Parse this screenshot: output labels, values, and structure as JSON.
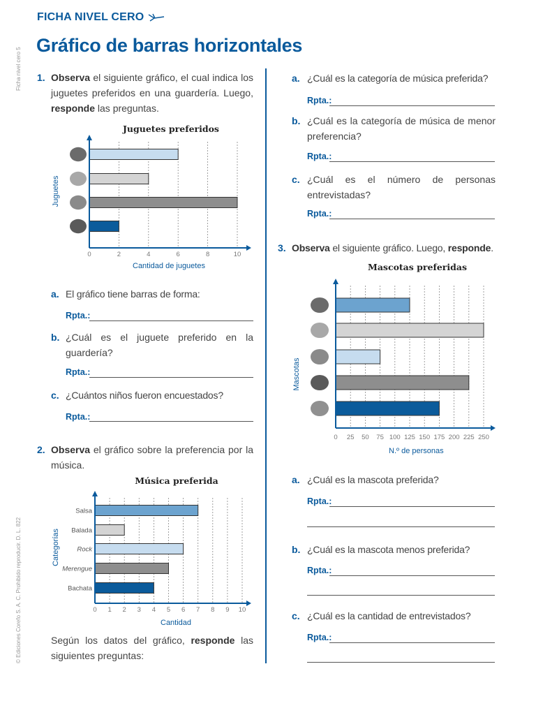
{
  "header": {
    "kicker": "FICHA NIVEL CERO",
    "kicker_icon": "dragonfly-icon",
    "title": "Gráfico de barras horizontales"
  },
  "side": {
    "top": "Ficha nivel cero 5",
    "bottom": "© Ediciones Corefo S. A. C. Prohibido reproducir. D. L. 822"
  },
  "colors": {
    "accent": "#0a5a9c",
    "bar_light_blue": "#c6dcef",
    "bar_light_gray": "#d4d4d4",
    "bar_gray": "#8e8e8e",
    "bar_dark_blue": "#0b5b9b",
    "bar_mid_blue": "#6ca3cf"
  },
  "rpta_label": "Rpta.:",
  "q1": {
    "num": "1.",
    "bold1": "Observa",
    "text1": " el siguiente gráfico, el cual indica los juguetes preferidos en una guardería. Luego, ",
    "bold2": "responde",
    "text2": " las preguntas.",
    "items": [
      {
        "letter": "a.",
        "text": "El gráfico tiene barras de forma:"
      },
      {
        "letter": "b.",
        "text": "¿Cuál es el juguete preferido en la guardería?"
      },
      {
        "letter": "c.",
        "text": "¿Cuántos niños fueron encuestados?"
      }
    ]
  },
  "q2": {
    "num": "2.",
    "bold1": "Observa",
    "text1": " el gráfico sobre la preferencia por la música.",
    "followup_text": "Según los datos del gráfico, ",
    "followup_bold": "responde",
    "followup_text2": " las siguientes preguntas:",
    "items": [
      {
        "letter": "a.",
        "text": "¿Cuál es la categoría de música preferida?"
      },
      {
        "letter": "b.",
        "text": "¿Cuál es la categoría de música de menor preferencia?"
      },
      {
        "letter": "c.",
        "text": "¿Cuál es el número de personas entrevistadas?"
      }
    ]
  },
  "q3": {
    "num": "3.",
    "bold1": "Observa",
    "text1": " el siguiente gráfico. Luego, ",
    "bold2": "responde",
    "text2": ".",
    "items": [
      {
        "letter": "a.",
        "text": "¿Cuál es la mascota preferida?"
      },
      {
        "letter": "b.",
        "text": "¿Cuál es la mascota menos preferida?"
      },
      {
        "letter": "c.",
        "text": "¿Cuál es la cantidad de entrevistados?"
      }
    ]
  },
  "chart_data": [
    {
      "type": "bar",
      "orientation": "horizontal",
      "title": "Juguetes preferidos",
      "xlabel": "Cantidad de juguetes",
      "ylabel": "Juguetes",
      "category_icons": [
        "ball-icon",
        "doll-icon",
        "airplane-icon",
        "teddy-bear-icon"
      ],
      "values": [
        6,
        4,
        10,
        2
      ],
      "bar_colors": [
        "#c6dcef",
        "#d4d4d4",
        "#8e8e8e",
        "#0b5b9b"
      ],
      "xlim": [
        0,
        10
      ],
      "xticks": [
        "0",
        "2",
        "4",
        "6",
        "8",
        "10"
      ],
      "grid": true
    },
    {
      "type": "bar",
      "orientation": "horizontal",
      "title": "Música preferida",
      "xlabel": "Cantidad",
      "ylabel": "Categorías",
      "categories": [
        "Salsa",
        "Balada",
        "Rock",
        "Merengue",
        "Bachata"
      ],
      "values": [
        7,
        2,
        6,
        5,
        4
      ],
      "bar_colors": [
        "#6ca3cf",
        "#d4d4d4",
        "#c6dcef",
        "#8e8e8e",
        "#0b5b9b"
      ],
      "xlim": [
        0,
        10
      ],
      "xticks": [
        "0",
        "1",
        "2",
        "3",
        "4",
        "5",
        "6",
        "7",
        "8",
        "9",
        "10"
      ],
      "grid": true
    },
    {
      "type": "bar",
      "orientation": "horizontal",
      "title": "Mascotas preferidas",
      "xlabel": "N.º de personas",
      "ylabel": "Mascotas",
      "category_icons": [
        "turtle-icon",
        "rabbit-icon",
        "parrot-icon",
        "dog-icon",
        "cat-icon"
      ],
      "values": [
        125,
        250,
        75,
        225,
        175
      ],
      "bar_colors": [
        "#6ca3cf",
        "#d4d4d4",
        "#c6dcef",
        "#8e8e8e",
        "#0b5b9b"
      ],
      "xlim": [
        0,
        250
      ],
      "xticks": [
        "0",
        "25",
        "50",
        "75",
        "100",
        "125",
        "150",
        "175",
        "200",
        "225",
        "250"
      ],
      "grid": true
    }
  ]
}
